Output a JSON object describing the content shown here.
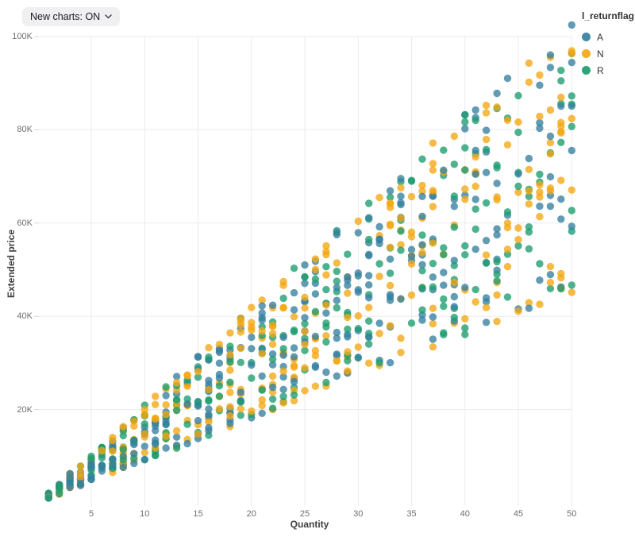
{
  "page": {
    "background": "#ffffff"
  },
  "controls": {
    "new_charts_label": "New charts: ON",
    "chevron_icon": "chevron-down"
  },
  "chart_data": {
    "type": "scatter",
    "title": "",
    "xlabel": "Quantity",
    "ylabel": "Extended price",
    "legend_title": "l_returnflag",
    "legend_position": "top-right",
    "grid": true,
    "x_ticks": [
      5,
      10,
      15,
      20,
      25,
      30,
      35,
      40,
      45,
      50
    ],
    "y_ticks": [
      {
        "value_k": 20,
        "label": "20K"
      },
      {
        "value_k": 40,
        "label": "40K"
      },
      {
        "value_k": 60,
        "label": "60K"
      },
      {
        "value_k": 80,
        "label": "80K"
      },
      {
        "value_k": 100,
        "label": "100K"
      }
    ],
    "x_domain": [
      1,
      50
    ],
    "y_domain_k": [
      0,
      105
    ],
    "series": [
      {
        "name": "A",
        "color": "#35809f"
      },
      {
        "name": "N",
        "color": "#f3a712"
      },
      {
        "name": "R",
        "color": "#1d9c6e"
      }
    ],
    "point_radius": 4.7,
    "point_opacity": 0.78,
    "relationship": "extended_price_k = quantity x unit_price_k; unit_price_k uniform in [0.901, 2.098]; quantities are integers 1..50",
    "points_generator": {
      "seed": 20,
      "quantity_min": 1,
      "quantity_max": 50,
      "points_per_quantity_min": 12,
      "points_per_quantity_max": 20,
      "unit_price_k_min": 0.901,
      "unit_price_k_max": 2.098
    },
    "colors": {
      "grid": "#ebebeb",
      "axis_tick": "#d8d8d8",
      "tick_label": "#6e6e6e",
      "axis_title": "#3f3f3f",
      "legend_text": "#333333"
    }
  }
}
